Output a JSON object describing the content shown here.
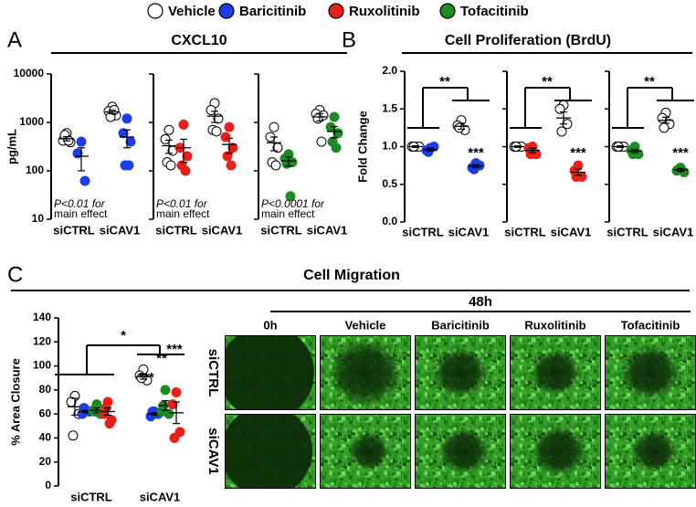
{
  "legend": {
    "items": [
      {
        "name": "Vehicle",
        "color": "#ffffff"
      },
      {
        "name": "Baricitinib",
        "color": "#1f3de6"
      },
      {
        "name": "Ruxolitinib",
        "color": "#e8201b"
      },
      {
        "name": "Tofacitinib",
        "color": "#1e8a25"
      }
    ]
  },
  "panels": [
    {
      "label": "A",
      "title": "CXCL10"
    },
    {
      "label": "B",
      "title": "Cell Proliferation (BrdU)"
    },
    {
      "label": "C",
      "title": "Cell Migration"
    }
  ],
  "chart_data": [
    {
      "type": "dot",
      "ylabel": "pg/mL",
      "categories": [
        "siCTRL",
        "siCAV1"
      ],
      "log_scale": true,
      "ylim": [
        10,
        10000
      ],
      "yticks": [
        10,
        100,
        1000,
        10000
      ],
      "series": [
        {
          "color": "#ffffff",
          "values": [
            [
              600,
              420,
              390,
              550,
              420
            ],
            [
              2100,
              1700,
              1400,
              1300,
              1800
            ]
          ],
          "mean": [
            460,
            1650
          ],
          "sem": [
            45,
            140
          ]
        },
        {
          "color": "#1f3de6",
          "values": [
            [
              400,
              230,
              62
            ],
            [
              1200,
              600,
              400,
              130,
              130
            ]
          ],
          "mean": [
            200,
            500
          ],
          "sem": [
            100,
            200
          ]
        }
      ],
      "annotation": [
        "P<0.01 for",
        "main effect"
      ]
    },
    {
      "type": "dot",
      "categories": [
        "siCTRL",
        "siCAV1"
      ],
      "log_scale": true,
      "ylim": [
        10,
        10000
      ],
      "yticks": [
        10,
        100,
        1000,
        10000
      ],
      "series": [
        {
          "color": "#ffffff",
          "values": [
            [
              700,
              450,
              260,
              150,
              130
            ],
            [
              2500,
              1800,
              1200,
              700,
              650
            ]
          ],
          "mean": [
            330,
            1350
          ],
          "sem": [
            100,
            350
          ]
        },
        {
          "color": "#e8201b",
          "values": [
            [
              900,
              300,
              200,
              130,
              100
            ],
            [
              800,
              500,
              300,
              200,
              130
            ]
          ],
          "mean": [
            300,
            350
          ],
          "sem": [
            150,
            120
          ]
        }
      ],
      "annotation": [
        "P<0.01 for",
        "main effect"
      ]
    },
    {
      "type": "dot",
      "categories": [
        "siCTRL",
        "siCAV1"
      ],
      "log_scale": true,
      "ylim": [
        10,
        10000
      ],
      "yticks": [
        10,
        100,
        1000,
        10000
      ],
      "series": [
        {
          "color": "#ffffff",
          "values": [
            [
              800,
              500,
              300,
              150,
              130
            ],
            [
              1800,
              1500,
              1400,
              1200,
              400
            ]
          ],
          "mean": [
            380,
            1300
          ],
          "sem": [
            120,
            230
          ]
        },
        {
          "color": "#1e8a25",
          "values": [
            [
              220,
              180,
              150,
              140,
              30
            ],
            [
              1300,
              800,
              600,
              400,
              300
            ]
          ],
          "mean": [
            160,
            650
          ],
          "sem": [
            35,
            170
          ]
        }
      ],
      "annotation": [
        "P<0.0001 for",
        "main effect"
      ]
    },
    {
      "type": "dot",
      "ylabel": "Fold Change",
      "categories": [
        "siCTRL",
        "siCAV1"
      ],
      "ylim": [
        0,
        2
      ],
      "yticks": [
        {
          "value": 0,
          "label": "0.0"
        },
        {
          "value": 0.5,
          "label": "0.5"
        },
        {
          "value": 1,
          "label": "1.0"
        },
        {
          "value": 1.5,
          "label": "1.5"
        },
        {
          "value": 2,
          "label": "2.0"
        }
      ],
      "series": [
        {
          "color": "#ffffff",
          "values": [
            [
              1,
              1,
              1,
              1
            ],
            [
              1.35,
              1.28,
              1.22,
              1.25
            ]
          ],
          "mean": [
            1,
            1.27
          ],
          "sem": [
            0.01,
            0.04
          ]
        },
        {
          "color": "#1f3de6",
          "values": [
            [
              0.98,
              0.95,
              1,
              0.93
            ],
            [
              0.78,
              0.72,
              0.75,
              0.7
            ]
          ],
          "mean": [
            0.96,
            0.74
          ],
          "sem": [
            0.02,
            0.02
          ]
        }
      ],
      "annotations": [
        "**",
        "***"
      ]
    },
    {
      "type": "dot",
      "categories": [
        "siCTRL",
        "siCAV1"
      ],
      "ylim": [
        0,
        2
      ],
      "yticks": [
        {
          "value": 0,
          "label": "0.0"
        },
        {
          "value": 0.5,
          "label": "0.5"
        },
        {
          "value": 1,
          "label": "1.0"
        },
        {
          "value": 1.5,
          "label": "1.5"
        },
        {
          "value": 2,
          "label": "2.0"
        }
      ],
      "series": [
        {
          "color": "#ffffff",
          "values": [
            [
              1,
              1,
              1,
              1
            ],
            [
              1.55,
              1.5,
              1.3,
              1.2
            ]
          ],
          "mean": [
            1,
            1.38
          ],
          "sem": [
            0.01,
            0.08
          ]
        },
        {
          "color": "#e8201b",
          "values": [
            [
              1,
              0.98,
              0.9,
              0.9
            ],
            [
              0.75,
              0.68,
              0.6,
              0.6
            ]
          ],
          "mean": [
            0.95,
            0.66
          ],
          "sem": [
            0.03,
            0.04
          ]
        }
      ],
      "annotations": [
        "**",
        "***"
      ]
    },
    {
      "type": "dot",
      "categories": [
        "siCTRL",
        "siCAV1"
      ],
      "ylim": [
        0,
        2
      ],
      "yticks": [
        {
          "value": 0,
          "label": "0.0"
        },
        {
          "value": 0.5,
          "label": "0.5"
        },
        {
          "value": 1,
          "label": "1.0"
        },
        {
          "value": 1.5,
          "label": "1.5"
        },
        {
          "value": 2,
          "label": "2.0"
        }
      ],
      "series": [
        {
          "color": "#ffffff",
          "values": [
            [
              1,
              1,
              1,
              1
            ],
            [
              1.45,
              1.38,
              1.3,
              1.25
            ]
          ],
          "mean": [
            1,
            1.35
          ],
          "sem": [
            0.01,
            0.04
          ]
        },
        {
          "color": "#1e8a25",
          "values": [
            [
              1,
              0.95,
              0.9,
              0.9
            ],
            [
              0.72,
              0.68,
              0.66,
              0.7
            ]
          ],
          "mean": [
            0.94,
            0.69
          ],
          "sem": [
            0.02,
            0.02
          ]
        }
      ],
      "annotations": [
        "**",
        "***"
      ]
    },
    {
      "type": "dot",
      "ylabel": "% Area Closure",
      "categories": [
        "siCTRL",
        "siCAV1"
      ],
      "ylim": [
        0,
        140
      ],
      "yticks": [
        0,
        20,
        40,
        60,
        80,
        100,
        120,
        140
      ],
      "series": [
        {
          "color": "#ffffff",
          "values": [
            [
              75,
              70,
              60,
              42
            ],
            [
              97,
              92,
              88,
              90
            ]
          ],
          "mean": [
            66,
            91
          ],
          "sem": [
            7,
            2
          ]
        },
        {
          "color": "#1f3de6",
          "values": [
            [
              63,
              60,
              62,
              65
            ],
            [
              62,
              58,
              60,
              62
            ]
          ],
          "mean": [
            62,
            60
          ],
          "sem": [
            1,
            1
          ]
        },
        {
          "color": "#1e8a25",
          "values": [
            [
              68,
              63,
              60,
              62
            ],
            [
              80,
              62,
              60,
              67
            ]
          ],
          "mean": [
            63,
            67
          ],
          "sem": [
            2,
            4
          ]
        },
        {
          "color": "#e8201b",
          "values": [
            [
              70,
              60,
              55,
              65,
              52
            ],
            [
              78,
              68,
              45,
              40
            ]
          ],
          "mean": [
            62,
            61
          ],
          "sem": [
            3,
            9
          ]
        }
      ],
      "annotations": [
        "*",
        "***",
        "**",
        "***"
      ]
    }
  ],
  "images": {
    "header": "48h",
    "columns": [
      "0h",
      "Vehicle",
      "Baricitinib",
      "Ruxolitinib",
      "Tofacitinib"
    ],
    "rows": [
      "siCTRL",
      "siCAV1"
    ]
  }
}
